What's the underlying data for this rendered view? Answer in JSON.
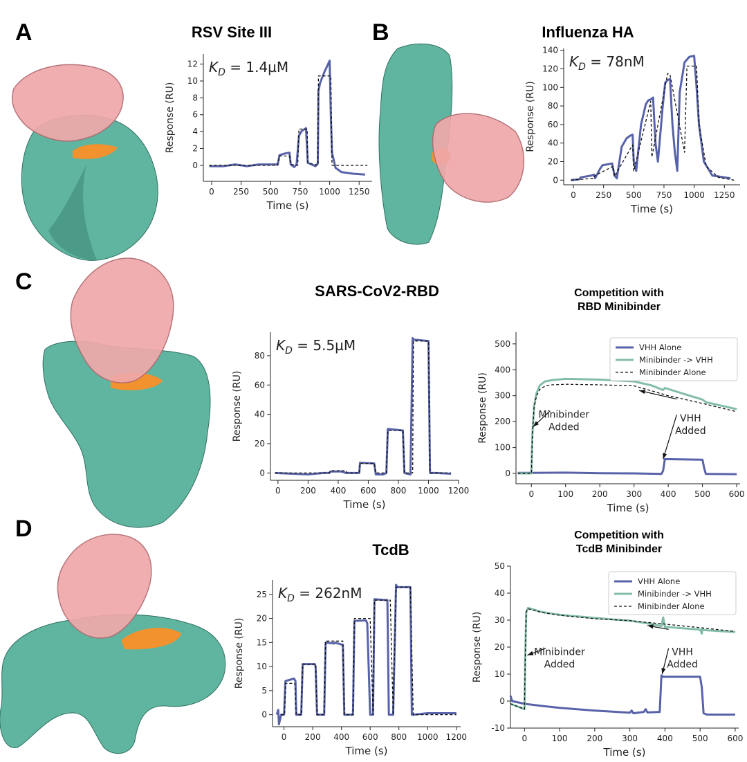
{
  "panels": [
    {
      "letter": "A",
      "title": "RSV Site III"
    },
    {
      "letter": "B",
      "title": "Influenza HA"
    },
    {
      "letter": "C",
      "title": "SARS-CoV2-RBD",
      "competition_title": [
        "Competition with",
        "RBD Minibinder"
      ]
    },
    {
      "letter": "D",
      "title": "TcdB",
      "competition_title": [
        "Competition with",
        "TcdB Minibinder"
      ]
    }
  ],
  "colors": {
    "protein_surface": "#5fb5a0",
    "binder_cartoon": "#f0a8aa",
    "epitope": "#f2922f",
    "vhh_alone": "#5762a8",
    "minibinder_vhh": "#83bda9",
    "fit": "#111111"
  },
  "chart_data": [
    {
      "id": "A",
      "type": "line",
      "annotation": {
        "prefix": "K",
        "sub": "D",
        "value": " = 1.4µM"
      },
      "xlabel": "Time (s)",
      "ylabel": "Response (RU)",
      "xlim": [
        -70,
        1360
      ],
      "ylim": [
        -1.9,
        13.2
      ],
      "xticks": [
        0,
        250,
        500,
        750,
        1000,
        1250
      ],
      "yticks": [
        0,
        2,
        4,
        6,
        8,
        10,
        12
      ],
      "legend": null,
      "series": [
        {
          "style": "data",
          "x": [
            -20,
            100,
            200,
            300,
            400,
            500,
            560,
            575,
            620,
            660,
            670,
            700,
            720,
            740,
            760,
            775,
            790,
            800,
            815,
            880,
            900,
            905,
            920,
            940,
            960,
            980,
            1000,
            1010,
            1020,
            1050,
            1100,
            1200,
            1300
          ],
          "y": [
            -0.1,
            -0.1,
            0.1,
            -0.1,
            0.1,
            0.1,
            0.1,
            1.2,
            1.4,
            1.5,
            0.1,
            -0.2,
            0.1,
            3.5,
            4.0,
            4.2,
            4.3,
            4.4,
            0.3,
            -0.1,
            0.2,
            8.8,
            9.8,
            10.5,
            11.2,
            11.8,
            12.4,
            6.0,
            1.5,
            -0.3,
            -0.8,
            -1.0,
            -1.1
          ]
        },
        {
          "style": "fit",
          "x": [
            -20,
            560,
            575,
            660,
            670,
            730,
            740,
            810,
            815,
            900,
            905,
            1010,
            1020,
            1320
          ],
          "y": [
            0.0,
            0.0,
            1.1,
            1.1,
            0.1,
            0.0,
            4.3,
            4.3,
            0.3,
            0.0,
            10.6,
            10.6,
            0.0,
            0.0
          ]
        }
      ]
    },
    {
      "id": "B",
      "type": "line",
      "annotation": {
        "prefix": "K",
        "sub": "D",
        "value": " = 78nM"
      },
      "xlabel": "Time (s)",
      "ylabel": "Response (RU)",
      "xlim": [
        -80,
        1380
      ],
      "ylim": [
        -5,
        142
      ],
      "xticks": [
        0,
        250,
        500,
        750,
        1000,
        1250
      ],
      "yticks": [
        0,
        20,
        40,
        60,
        80,
        100,
        120,
        140
      ],
      "legend": null,
      "series": [
        {
          "style": "data",
          "x": [
            -20,
            50,
            60,
            150,
            170,
            180,
            220,
            240,
            320,
            340,
            360,
            400,
            440,
            470,
            490,
            500,
            520,
            560,
            600,
            620,
            640,
            660,
            680,
            700,
            740,
            760,
            780,
            800,
            820,
            840,
            860,
            880,
            920,
            960,
            1000,
            1020,
            1040,
            1080,
            1150,
            1300
          ],
          "y": [
            0,
            1,
            3,
            5,
            6,
            2,
            12,
            16,
            18,
            5,
            2,
            36,
            45,
            48,
            49,
            20,
            10,
            60,
            82,
            86,
            87,
            89,
            40,
            20,
            80,
            105,
            108,
            109,
            60,
            30,
            10,
            95,
            127,
            133,
            134,
            100,
            60,
            20,
            5,
            2
          ]
        },
        {
          "style": "fit",
          "x": [
            -20,
            170,
            180,
            330,
            340,
            490,
            500,
            640,
            650,
            780,
            800,
            920,
            940,
            1020,
            1040,
            1100,
            1200,
            1330
          ],
          "y": [
            0,
            2,
            5,
            15,
            4,
            38,
            10,
            85,
            25,
            115,
            114,
            30,
            123,
            123,
            60,
            15,
            3,
            0
          ]
        }
      ]
    },
    {
      "id": "C",
      "type": "line",
      "annotation": {
        "prefix": "K",
        "sub": "D",
        "value": " = 5.5µM"
      },
      "xlabel": "Time (s)",
      "ylabel": "Response (RU)",
      "xlim": [
        -50,
        1200
      ],
      "ylim": [
        -5,
        96
      ],
      "xticks": [
        0,
        200,
        400,
        600,
        800,
        1000,
        1200
      ],
      "yticks": [
        0,
        20,
        40,
        60,
        80
      ],
      "legend": null,
      "series": [
        {
          "style": "data",
          "x": [
            -20,
            100,
            200,
            300,
            340,
            350,
            420,
            440,
            450,
            520,
            540,
            545,
            640,
            650,
            700,
            720,
            730,
            830,
            840,
            880,
            895,
            900,
            1000,
            1010,
            1050,
            1150
          ],
          "y": [
            0,
            -0.5,
            -1,
            0,
            0,
            1,
            1,
            0.5,
            0,
            0,
            0,
            7,
            6.5,
            -1,
            -1,
            0,
            30,
            29,
            0,
            -1,
            92,
            91,
            90,
            0,
            0,
            -0.5
          ]
        },
        {
          "style": "fit",
          "x": [
            -20,
            340,
            350,
            450,
            460,
            540,
            545,
            640,
            650,
            720,
            730,
            830,
            840,
            895,
            900,
            1000,
            1010,
            1150
          ],
          "y": [
            0,
            0,
            1.5,
            1.5,
            0,
            0,
            6.5,
            6.5,
            0,
            0,
            29,
            29,
            0,
            0,
            90,
            90,
            0,
            0
          ]
        }
      ]
    },
    {
      "id": "C-competition",
      "type": "line",
      "xlabel": "Time (s)",
      "ylabel": "Response (RU)",
      "xlim": [
        -45,
        610
      ],
      "ylim": [
        -40,
        545
      ],
      "xticks": [
        0,
        100,
        200,
        300,
        400,
        500,
        600
      ],
      "yticks": [
        0,
        100,
        200,
        300,
        400,
        500
      ],
      "legend": {
        "placement": "top-right",
        "entries": [
          "VHH Alone",
          "Minibinder -> VHH",
          "Minibinder Alone"
        ]
      },
      "annotations": [
        {
          "lines": [
            "Minibinder",
            "Added"
          ],
          "xy": [
            5,
            180
          ],
          "text_at": [
            75,
            215
          ]
        },
        {
          "lines": [
            "VHH",
            "Added"
          ],
          "xy": [
            385,
            55
          ],
          "text_at": [
            445,
            200
          ]
        },
        {
          "arrow_only": true,
          "xy": [
            315,
            320
          ],
          "text_at": [
            445,
            260
          ]
        }
      ],
      "series": [
        {
          "name": "VHH Alone",
          "style": "solid",
          "color_key": "vhh_alone",
          "x": [
            -40,
            0,
            100,
            200,
            300,
            380,
            385,
            390,
            500,
            505,
            510,
            600
          ],
          "y": [
            2,
            2,
            3,
            1,
            0,
            -2,
            10,
            55,
            53,
            20,
            -2,
            -3
          ]
        },
        {
          "name": "Minibinder -> VHH",
          "style": "solid",
          "color_key": "minibinder_vhh",
          "x": [
            -40,
            0,
            3,
            8,
            15,
            25,
            40,
            60,
            100,
            200,
            300,
            350,
            385,
            390,
            450,
            500,
            510,
            600
          ],
          "y": [
            0,
            0,
            150,
            260,
            310,
            340,
            355,
            360,
            365,
            362,
            355,
            340,
            322,
            330,
            305,
            285,
            275,
            248
          ]
        },
        {
          "name": "Minibinder Alone",
          "style": "dashed",
          "color_key": "fit",
          "x": [
            -40,
            0,
            3,
            8,
            15,
            25,
            40,
            60,
            100,
            200,
            300,
            400,
            500,
            600
          ],
          "y": [
            0,
            0,
            150,
            255,
            300,
            325,
            337,
            342,
            344,
            342,
            338,
            300,
            270,
            238
          ]
        }
      ]
    },
    {
      "id": "D",
      "type": "line",
      "annotation": {
        "prefix": "K",
        "sub": "D",
        "value": " = 262nM"
      },
      "xlabel": "Time (s)",
      "ylabel": "Response (RU)",
      "xlim": [
        -80,
        1230
      ],
      "ylim": [
        -2.5,
        28
      ],
      "xticks": [
        0,
        200,
        400,
        600,
        800,
        1000,
        1200
      ],
      "yticks": [
        0,
        5,
        10,
        15,
        20,
        25
      ],
      "legend": null,
      "series": [
        {
          "style": "data",
          "x": [
            -50,
            -40,
            -35,
            -20,
            -10,
            0,
            10,
            70,
            80,
            85,
            120,
            130,
            215,
            220,
            230,
            280,
            290,
            350,
            355,
            410,
            420,
            430,
            480,
            490,
            570,
            580,
            600,
            620,
            630,
            720,
            730,
            760,
            780,
            790,
            880,
            890,
            900,
            1000,
            1200
          ],
          "y": [
            0,
            1,
            -2,
            0,
            0,
            0,
            7,
            7.5,
            7,
            0,
            0,
            10.5,
            10.5,
            10,
            0,
            0,
            15,
            14.8,
            15,
            14.5,
            0,
            0,
            0,
            19.5,
            19.6,
            19,
            0,
            0,
            24,
            23.8,
            0,
            0,
            27,
            26.5,
            26.5,
            0,
            0,
            0.3,
            0.3
          ]
        },
        {
          "style": "fit",
          "x": [
            -20,
            5,
            10,
            75,
            85,
            120,
            130,
            220,
            230,
            280,
            290,
            410,
            420,
            480,
            490,
            600,
            620,
            630,
            740,
            760,
            780,
            880,
            900,
            1200
          ],
          "y": [
            0,
            0,
            6.5,
            6.5,
            0,
            0,
            10.5,
            10.5,
            0,
            0,
            15.3,
            15.3,
            0,
            0,
            20,
            20,
            0,
            23.8,
            23.8,
            0,
            26.5,
            26.5,
            0,
            0
          ]
        }
      ]
    },
    {
      "id": "D-competition",
      "type": "line",
      "xlabel": "Time (s)",
      "ylabel": "Response (RU)",
      "xlim": [
        -40,
        610
      ],
      "ylim": [
        -10,
        50
      ],
      "xticks": [
        0,
        100,
        200,
        300,
        400,
        500,
        600
      ],
      "yticks": [
        -10,
        0,
        10,
        20,
        30,
        40,
        50
      ],
      "legend": {
        "placement": "top-right",
        "entries": [
          "VHH Alone",
          "Minibinder -> VHH",
          "Minibinder Alone"
        ]
      },
      "annotations": [
        {
          "lines": [
            "Minibinder",
            "Added"
          ],
          "xy": [
            8,
            17
          ],
          "text_at": [
            80,
            17
          ]
        },
        {
          "lines": [
            "VHH",
            "Added"
          ],
          "xy": [
            392,
            10
          ],
          "text_at": [
            430,
            17
          ]
        },
        {
          "arrow_only": true,
          "xy": [
            350,
            28
          ],
          "text_at": [
            430,
            24
          ]
        }
      ],
      "series": [
        {
          "name": "VHH Alone",
          "style": "solid",
          "color_key": "vhh_alone",
          "x": [
            -40,
            -35,
            0,
            50,
            100,
            200,
            300,
            305,
            310,
            340,
            345,
            350,
            385,
            390,
            395,
            500,
            505,
            510,
            520,
            600
          ],
          "y": [
            2,
            0,
            -1,
            -1.8,
            -2.5,
            -3.5,
            -4.3,
            -3.5,
            -4.5,
            -4,
            -3,
            -4.2,
            -4,
            9.5,
            9,
            9,
            5,
            -4.5,
            -5,
            -5
          ]
        },
        {
          "name": "Minibinder -> VHH",
          "style": "solid",
          "color_key": "minibinder_vhh",
          "x": [
            -40,
            0,
            2,
            5,
            10,
            50,
            100,
            200,
            300,
            350,
            390,
            395,
            400,
            450,
            500,
            505,
            507,
            510,
            600
          ],
          "y": [
            -1,
            -3,
            15,
            33,
            34.5,
            33,
            32,
            30.8,
            29.8,
            28.8,
            27.8,
            31,
            27.5,
            27,
            26.5,
            25,
            27,
            26.3,
            25.6
          ]
        },
        {
          "name": "Minibinder Alone",
          "style": "dashed",
          "color_key": "fit",
          "x": [
            -40,
            0,
            2,
            5,
            10,
            50,
            100,
            200,
            300,
            400,
            500,
            600
          ],
          "y": [
            -1,
            -3,
            15,
            33,
            34.2,
            32.8,
            31.8,
            30.5,
            29.8,
            28.5,
            27.2,
            25.8
          ]
        }
      ]
    }
  ]
}
